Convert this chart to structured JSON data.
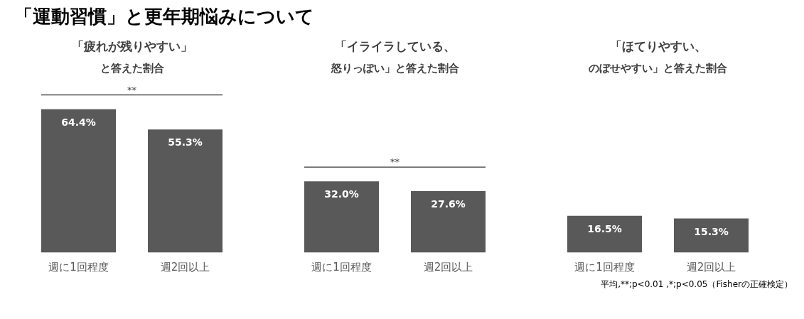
{
  "chart_data": [
    {
      "type": "bar",
      "title": "「疲れが残りやすい」",
      "subtitle": "と答えた割合",
      "categories": [
        "週に1回程度",
        "週2回以上"
      ],
      "values": [
        64.4,
        55.3
      ],
      "value_labels": [
        "64.4%",
        "55.3%"
      ],
      "color": "#595959",
      "grid": false,
      "annotations": [
        "「運動習慣」と更年期悩みについて",
        "**"
      ]
    },
    {
      "type": "bar",
      "title": "「イライラしている、",
      "subtitle": "怒りっぽい」と答えた割合",
      "categories": [
        "週に1回程度",
        "週2回以上"
      ],
      "values": [
        32.0,
        27.6
      ],
      "value_labels": [
        "32.0%",
        "27.6%"
      ],
      "color": "#595959",
      "grid": false,
      "annotations": [
        "**"
      ]
    },
    {
      "type": "bar",
      "title": "「ほてりやすい、",
      "subtitle": "のぼせやすい」と答えた割合",
      "categories": [
        "週に1回程度",
        "週2回以上"
      ],
      "values": [
        16.5,
        15.3
      ],
      "value_labels": [
        "16.5%",
        "15.3%"
      ],
      "color": "#595959",
      "grid": false,
      "annotations": [
        "平均,**;p<0.01 ,*;p<0.05（Fisherの正確検定）"
      ]
    }
  ]
}
